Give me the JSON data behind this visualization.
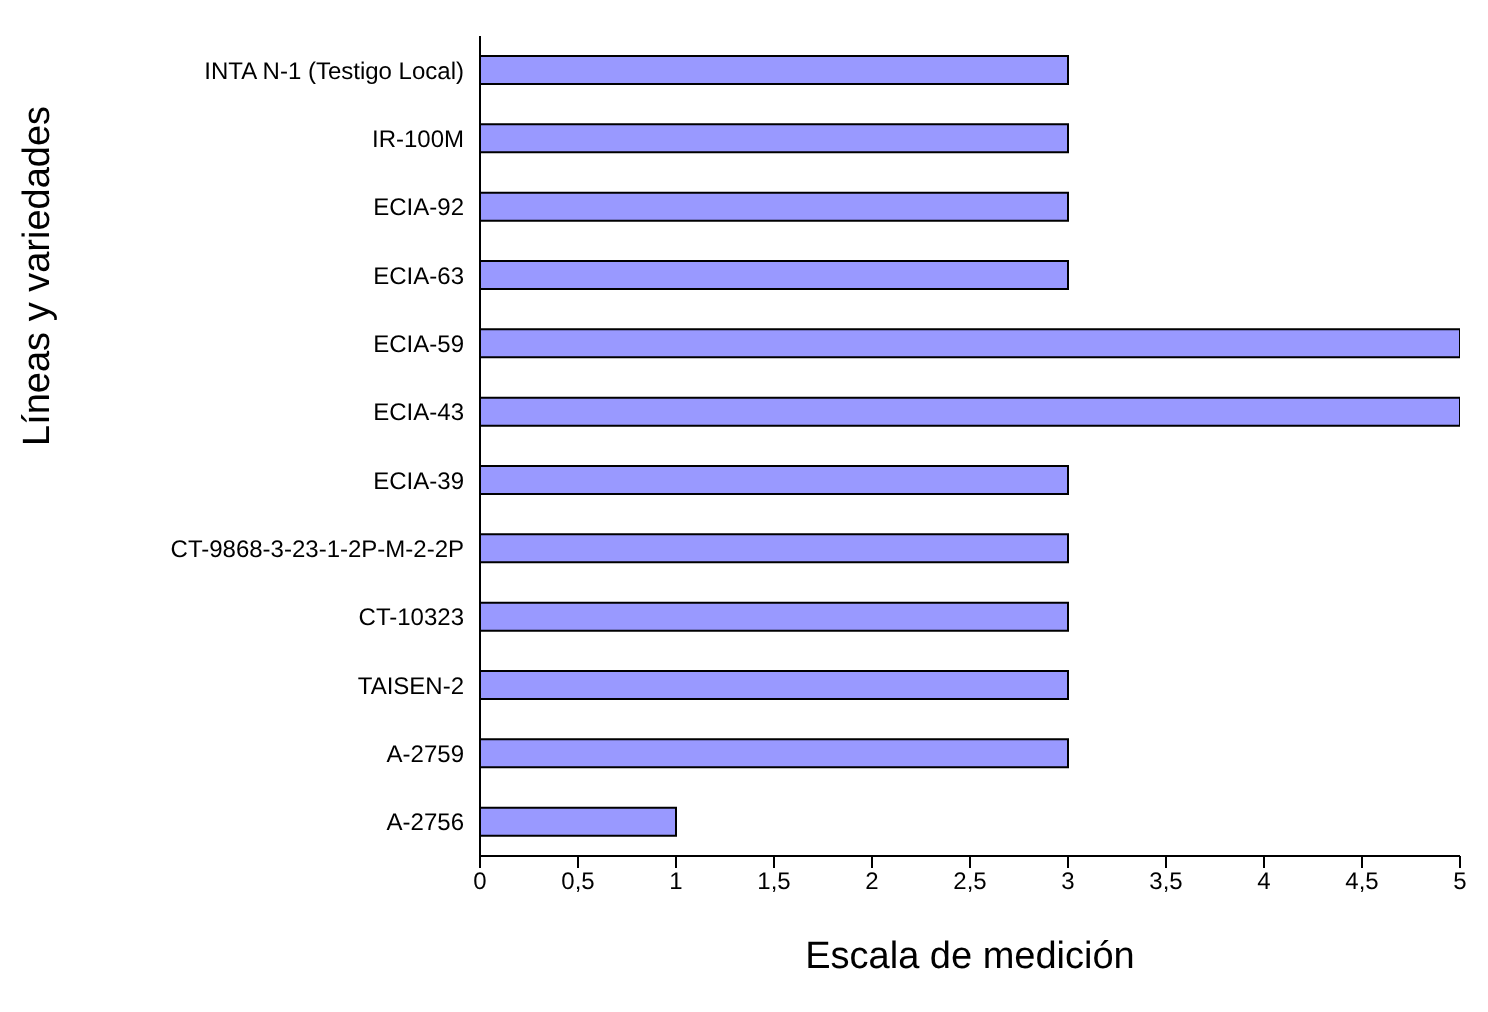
{
  "chart_data": {
    "type": "bar",
    "orientation": "horizontal",
    "xlabel": "Escala de medición",
    "ylabel": "Líneas y variedades",
    "categories": [
      "INTA N-1 (Testigo Local)",
      "IR-100M",
      "ECIA-92",
      "ECIA-63",
      "ECIA-59",
      "ECIA-43",
      "ECIA-39",
      "CT-9868-3-23-1-2P-M-2-2P",
      "CT-10323",
      "TAISEN-2",
      "A-2759",
      "A-2756"
    ],
    "values": [
      3,
      3,
      3,
      3,
      5,
      5,
      3,
      3,
      3,
      3,
      3,
      1
    ],
    "color": "#9999ff",
    "xlim": [
      0,
      5
    ],
    "xticks": [
      0,
      {
        "value": 0.5,
        "label": "0,5"
      },
      1,
      {
        "value": 1.5,
        "label": "1,5"
      },
      2,
      {
        "value": 2.5,
        "label": "2,5"
      },
      3,
      {
        "value": 3.5,
        "label": "3,5"
      },
      4,
      {
        "value": 4.5,
        "label": "4,5"
      },
      5
    ],
    "grid": false,
    "legend": false
  }
}
